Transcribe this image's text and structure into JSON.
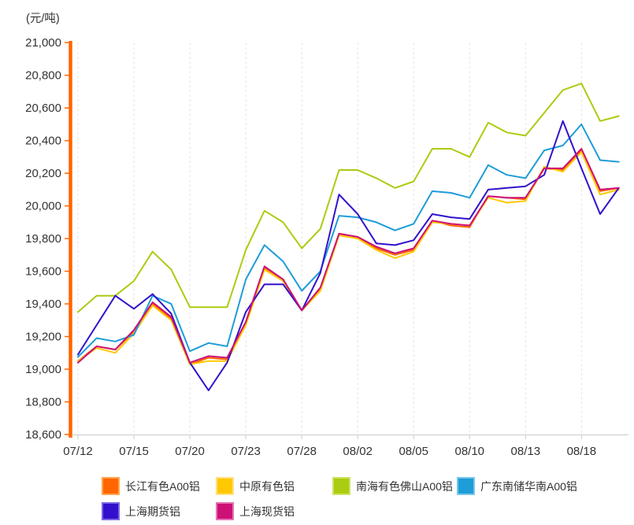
{
  "chart_data": {
    "type": "line",
    "unit_label": "(元/吨)",
    "ylabel": "(元/吨)",
    "ylim": [
      18600,
      21000
    ],
    "ytick_interval": 200,
    "grid": "vertical-dashed",
    "legend_position": "bottom",
    "n_points": 30,
    "x_ticks": [
      {
        "index": 0,
        "label": "07/12"
      },
      {
        "index": 3,
        "label": "07/15"
      },
      {
        "index": 6,
        "label": "07/20"
      },
      {
        "index": 9,
        "label": "07/23"
      },
      {
        "index": 12,
        "label": "07/28"
      },
      {
        "index": 15,
        "label": "08/02"
      },
      {
        "index": 18,
        "label": "08/05"
      },
      {
        "index": 21,
        "label": "08/10"
      },
      {
        "index": 24,
        "label": "08/13"
      },
      {
        "index": 27,
        "label": "08/18"
      }
    ],
    "series": [
      {
        "key": "changjiang",
        "name": "长江有色A00铝",
        "color": "#FF6600",
        "swatch_border": "#FFA64D",
        "values": [
          19050,
          19140,
          19120,
          19230,
          19400,
          19310,
          19030,
          19070,
          19060,
          19280,
          19620,
          19550,
          19360,
          19490,
          19830,
          19810,
          19740,
          19700,
          19730,
          19910,
          19880,
          19870,
          20060,
          20050,
          20040,
          20230,
          20220,
          20340,
          20090,
          20110
        ]
      },
      {
        "key": "zhongyuan",
        "name": "中原有色铝",
        "color": "#FFC800",
        "swatch_border": "#FFE080",
        "values": [
          19050,
          19130,
          19100,
          19220,
          19390,
          19300,
          19030,
          19050,
          19050,
          19270,
          19610,
          19540,
          19360,
          19480,
          19820,
          19800,
          19730,
          19680,
          19720,
          19900,
          19890,
          19880,
          20050,
          20020,
          20030,
          20240,
          20210,
          20330,
          20070,
          20100
        ]
      },
      {
        "key": "nanhai",
        "name": "南海有色佛山A00铝",
        "color": "#AACC11",
        "swatch_border": "#CCE266",
        "values": [
          19350,
          19450,
          19450,
          19540,
          19720,
          19610,
          19380,
          19380,
          19380,
          19730,
          19970,
          19900,
          19740,
          19860,
          20220,
          20220,
          20170,
          20110,
          20150,
          20350,
          20350,
          20300,
          20510,
          20450,
          20430,
          20570,
          20710,
          20750,
          20520,
          20550
        ]
      },
      {
        "key": "guangdong",
        "name": "广东南储华南A00铝",
        "color": "#1E9DD8",
        "swatch_border": "#7AC6E8",
        "values": [
          19075,
          19190,
          19170,
          19210,
          19450,
          19400,
          19110,
          19160,
          19140,
          19550,
          19760,
          19660,
          19480,
          19600,
          19940,
          19930,
          19900,
          19850,
          19890,
          20090,
          20080,
          20050,
          20250,
          20190,
          20170,
          20340,
          20370,
          20500,
          20280,
          20270
        ]
      },
      {
        "key": "shanghai-futures",
        "name": "上海期货铝",
        "color": "#3311CC",
        "swatch_border": "#8066E6",
        "values": [
          19090,
          19270,
          19450,
          19370,
          19460,
          19340,
          19040,
          18870,
          19040,
          19350,
          19520,
          19520,
          19360,
          19590,
          20070,
          19950,
          19770,
          19760,
          19790,
          19950,
          19930,
          19920,
          20100,
          20110,
          20120,
          20190,
          20520,
          20230,
          19950,
          20110
        ]
      },
      {
        "key": "shanghai-spot",
        "name": "上海现货铝",
        "color": "#CC1177",
        "swatch_border": "#E673B3",
        "values": [
          19040,
          19140,
          19120,
          19240,
          19410,
          19320,
          19040,
          19080,
          19070,
          19290,
          19630,
          19550,
          19360,
          19500,
          19830,
          19810,
          19750,
          19710,
          19740,
          19910,
          19890,
          19880,
          20060,
          20050,
          20050,
          20230,
          20230,
          20350,
          20100,
          20110
        ]
      }
    ],
    "axis_colors": {
      "y_axis": "#FF6600",
      "x_axis": "#CCCCCC",
      "gridline": "#E3E3E3",
      "label_text": "#333333"
    }
  },
  "legend": {
    "rows": [
      [
        "changjiang",
        "zhongyuan",
        "nanhai",
        "guangdong"
      ],
      [
        "shanghai-futures",
        "shanghai-spot"
      ]
    ]
  }
}
